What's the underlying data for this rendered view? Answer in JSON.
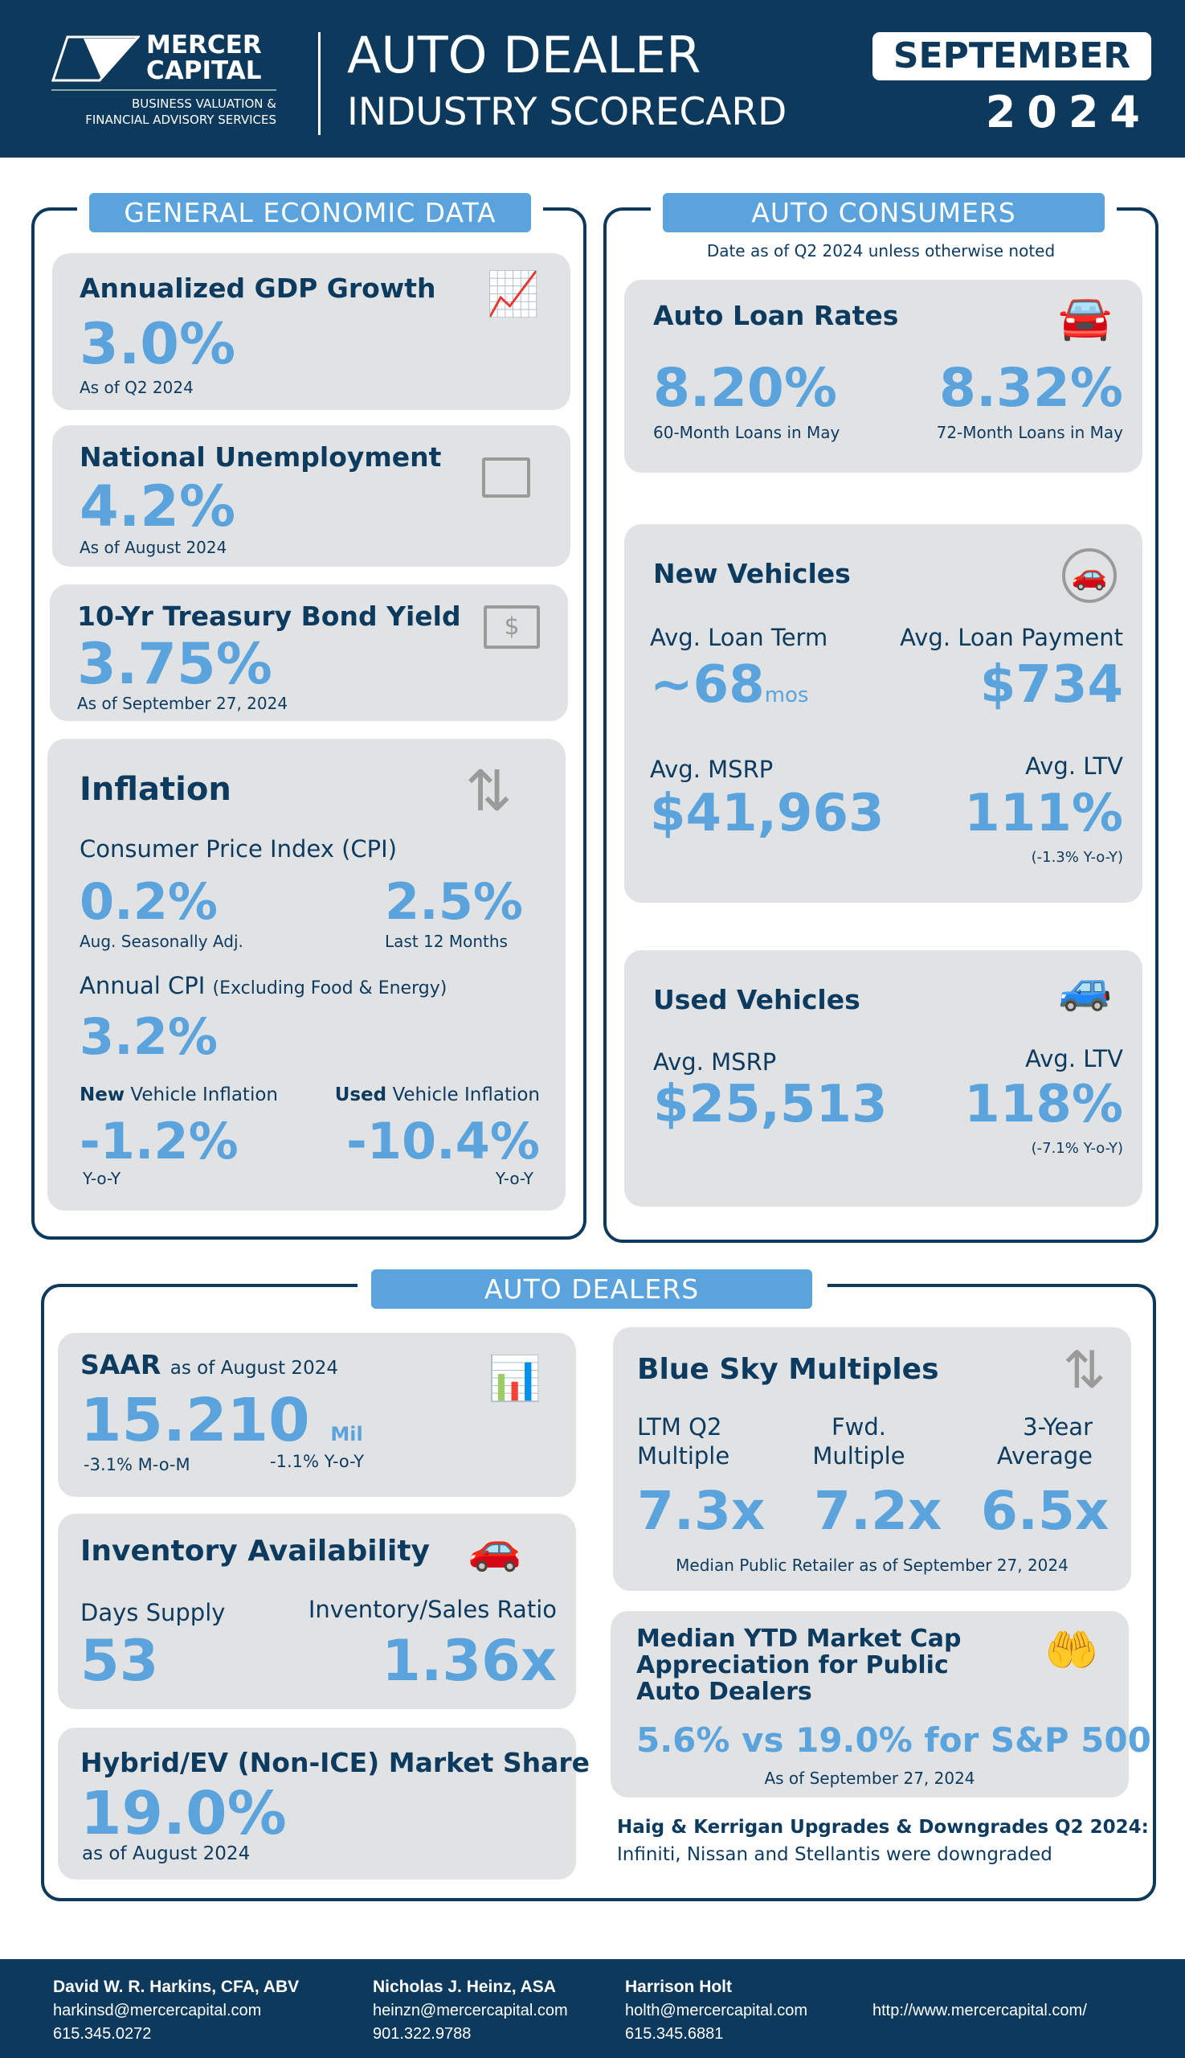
{
  "header": {
    "logo_line1": "MERCER",
    "logo_line2": "CAPITAL",
    "logo_tag1": "BUSINESS VALUATION &",
    "logo_tag2": "FINANCIAL ADVISORY SERVICES",
    "title1": "AUTO DEALER",
    "title2": "INDUSTRY SCORECARD",
    "month": "SEPTEMBER",
    "year": "2024"
  },
  "colors": {
    "navy": "#0d3a5c",
    "accent": "#5ba3dc",
    "card": "#e1e2e4"
  },
  "economic": {
    "heading": "GENERAL ECONOMIC DATA",
    "gdp": {
      "title": "Annualized GDP Growth",
      "value": "3.0%",
      "note": "As of Q2 2024",
      "icon": "bar-chart-dollar-icon"
    },
    "unemployment": {
      "title": "National Unemployment",
      "value": "4.2%",
      "note": "As of August 2024",
      "icon": "briefcase-icon"
    },
    "treasury": {
      "title": "10-Yr Treasury Bond Yield",
      "value": "3.75%",
      "note": "As of September 27, 2024",
      "icon": "dollar-bill-icon"
    },
    "inflation": {
      "title": "Inflation",
      "icon": "dollar-arrows-icon",
      "cpi_label": "Consumer Price Index (CPI)",
      "cpi_month": "0.2%",
      "cpi_month_note": "Aug. Seasonally Adj.",
      "cpi_12": "2.5%",
      "cpi_12_note": "Last 12 Months",
      "core_label": "Annual CPI",
      "core_paren": "(Excluding Food & Energy)",
      "core_value": "3.2%",
      "new_bold": "New",
      "new_rest": "Vehicle Inflation",
      "new_value": "-1.2%",
      "new_note": "Y-o-Y",
      "used_bold": "Used",
      "used_rest": "Vehicle Inflation",
      "used_value": "-10.4%",
      "used_note": "Y-o-Y"
    }
  },
  "consumers": {
    "heading": "AUTO CONSUMERS",
    "note": "Date as of Q2 2024 unless otherwise noted",
    "loan_rates": {
      "title": "Auto Loan Rates",
      "icon": "car-percent-icon",
      "v60": "8.20%",
      "n60": "60-Month Loans in May",
      "v72": "8.32%",
      "n72": "72-Month Loans in May"
    },
    "new": {
      "title": "New Vehicles",
      "icon": "car-plus-icon",
      "term_label": "Avg. Loan Term",
      "term_value": "~68",
      "term_unit": "mos",
      "payment_label": "Avg. Loan Payment",
      "payment_value": "$734",
      "msrp_label": "Avg. MSRP",
      "msrp_value": "$41,963",
      "ltv_label": "Avg. LTV",
      "ltv_value": "111%",
      "ltv_note": "(-1.3% Y-o-Y)"
    },
    "used": {
      "title": "Used Vehicles",
      "icon": "car-icon",
      "msrp_label": "Avg. MSRP",
      "msrp_value": "$25,513",
      "ltv_label": "Avg. LTV",
      "ltv_value": "118%",
      "ltv_note": "(-7.1% Y-o-Y)"
    }
  },
  "dealers": {
    "heading": "AUTO DEALERS",
    "saar": {
      "title": "SAAR",
      "title_note": "as of August 2024",
      "value": "15.210",
      "unit": "Mil",
      "mom": "-3.1% M-o-M",
      "yoy": "-1.1% Y-o-Y",
      "icon": "bar-chart-icon"
    },
    "inventory": {
      "title": "Inventory Availability",
      "icon": "cars-icon",
      "days_label": "Days Supply",
      "days_value": "53",
      "ratio_label": "Inventory/Sales Ratio",
      "ratio_value": "1.36x"
    },
    "hybrid": {
      "title": "Hybrid/EV (Non-ICE) Market Share",
      "value": "19.0%",
      "note": "as of August 2024"
    },
    "blue_sky": {
      "title": "Blue Sky Multiples",
      "icon": "up-down-arrows-icon",
      "c1a": "LTM Q2",
      "c1b": "Multiple",
      "v1": "7.3x",
      "c2a": "Fwd.",
      "c2b": "Multiple",
      "v2": "7.2x",
      "c3a": "3-Year",
      "c3b": "Average",
      "v3": "6.5x",
      "note": "Median Public Retailer as of September 27, 2024"
    },
    "market_cap": {
      "t1": "Median YTD Market Cap",
      "t2": "Appreciation for Public",
      "t3": "Auto Dealers",
      "value": "5.6% vs 19.0% for S&P 500",
      "note": "As of September 27, 2024",
      "icon": "hand-dollar-icon"
    },
    "haig": {
      "title": "Haig & Kerrigan Upgrades & Downgrades Q2 2024:",
      "text": "Infiniti, Nissan and Stellantis were downgraded"
    }
  },
  "footer": {
    "contacts": [
      {
        "name": "David W. R. Harkins, CFA, ABV",
        "email": "harkinsd@mercercapital.com",
        "phone": "615.345.0272"
      },
      {
        "name": "Nicholas J. Heinz, ASA",
        "email": "heinzn@mercercapital.com",
        "phone": "901.322.9788"
      },
      {
        "name": "Harrison Holt",
        "email": "holth@mercercapital.com",
        "phone": "615.345.6881"
      }
    ],
    "url": "http://www.mercercapital.com/"
  }
}
